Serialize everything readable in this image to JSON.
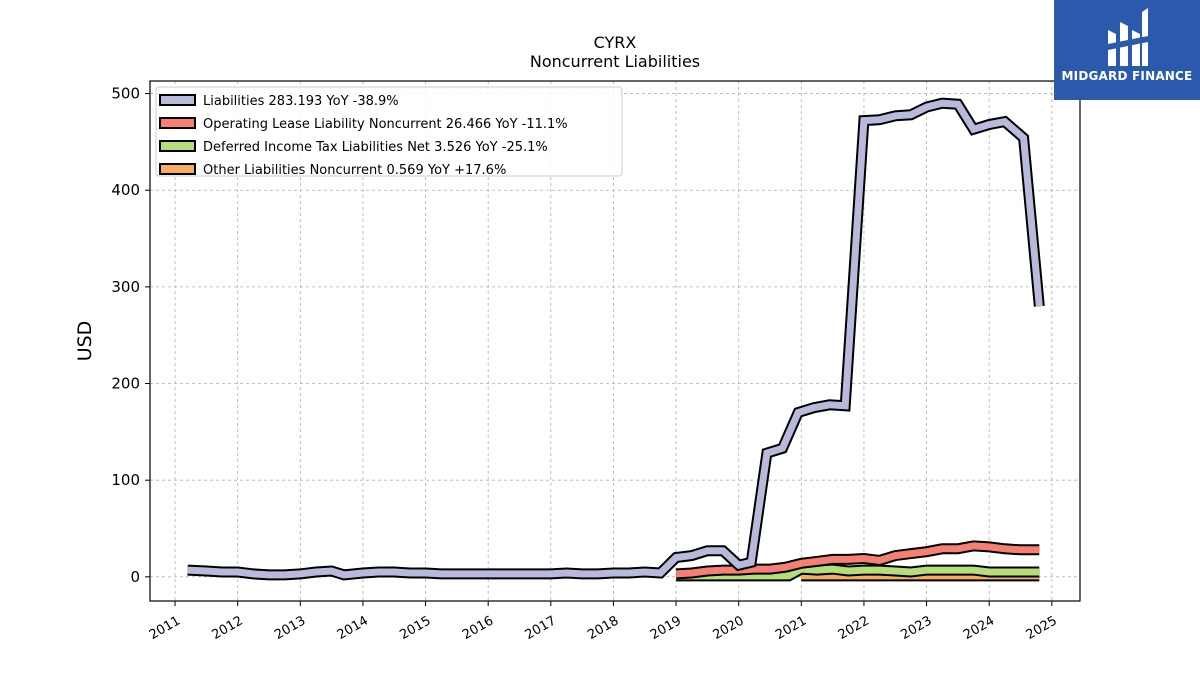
{
  "brand": {
    "name": "MIDGARD FINANCE",
    "color": "#2b5aad"
  },
  "chart_data": {
    "type": "line",
    "title": "CYRX",
    "subtitle": "Noncurrent  Liabilities",
    "ylabel": "USD",
    "xlabel": "",
    "xlim": [
      2010.6,
      2025.45
    ],
    "ylim": [
      -25,
      513
    ],
    "yticks": [
      0,
      100,
      200,
      300,
      400,
      500
    ],
    "xticks": [
      "2011",
      "2012",
      "2013",
      "2014",
      "2015",
      "2016",
      "2017",
      "2018",
      "2019",
      "2020",
      "2021",
      "2022",
      "2023",
      "2024",
      "2025"
    ],
    "grid": true,
    "legend_position": "top-left",
    "series": [
      {
        "name": "Liabilities  283.193 YoY -38.9%",
        "color": "#b9b9dc",
        "x": [
          2011.2,
          2011.5,
          2011.75,
          2012.0,
          2012.25,
          2012.5,
          2012.75,
          2013.0,
          2013.25,
          2013.5,
          2013.7,
          2014.0,
          2014.25,
          2014.5,
          2014.75,
          2015.0,
          2015.25,
          2015.5,
          2015.75,
          2016.0,
          2016.25,
          2016.5,
          2016.75,
          2017.0,
          2017.25,
          2017.5,
          2017.75,
          2018.0,
          2018.25,
          2018.5,
          2018.75,
          2019.0,
          2019.25,
          2019.5,
          2019.75,
          2020.0,
          2020.2,
          2020.45,
          2020.7,
          2020.95,
          2021.2,
          2021.45,
          2021.7,
          2022.0,
          2022.25,
          2022.5,
          2022.75,
          2023.0,
          2023.25,
          2023.5,
          2023.75,
          2024.0,
          2024.25,
          2024.55,
          2024.8
        ],
        "values": [
          7,
          6,
          5,
          5,
          3,
          2,
          2,
          3,
          5,
          6,
          2,
          4,
          5,
          5,
          4,
          4,
          3,
          3,
          3,
          3,
          3,
          3,
          3,
          3,
          4,
          3,
          3,
          4,
          4,
          5,
          4,
          20,
          22,
          27,
          27,
          12,
          15,
          128,
          133,
          170,
          175,
          178,
          177,
          472,
          473,
          477,
          478,
          486,
          490,
          489,
          463,
          468,
          471,
          454,
          280
        ]
      },
      {
        "name": "Operating Lease Liability Noncurrent  26.466 YoY -11.1%",
        "color": "#f47f72",
        "x": [
          2019.0,
          2019.25,
          2019.5,
          2019.75,
          2020.0,
          2020.25,
          2020.5,
          2020.75,
          2021.0,
          2021.25,
          2021.5,
          2021.75,
          2022.0,
          2022.25,
          2022.5,
          2022.75,
          2023.0,
          2023.25,
          2023.5,
          2023.75,
          2024.0,
          2024.25,
          2024.5,
          2024.8
        ],
        "values": [
          3,
          4,
          6,
          7,
          7,
          8,
          8,
          10,
          14,
          16,
          18,
          18,
          19,
          17,
          22,
          24,
          26,
          29,
          29,
          32,
          31,
          29,
          28,
          28
        ]
      },
      {
        "name": "Deferred Income Tax Liabilities Net  3.526 YoY -25.1%",
        "color": "#b5dd7a",
        "x": [
          2019.0,
          2019.5,
          2020.0,
          2020.5,
          2020.8,
          2021.0,
          2021.25,
          2021.5,
          2021.75,
          2022.0,
          2022.25,
          2022.5,
          2022.75,
          2023.0,
          2023.25,
          2023.5,
          2023.75,
          2024.0,
          2024.25,
          2024.5,
          2024.8
        ],
        "values": [
          1,
          1,
          1,
          1,
          1,
          8,
          7,
          8,
          6,
          7,
          7,
          6,
          5,
          7,
          7,
          7,
          7,
          5,
          5,
          5,
          5
        ]
      },
      {
        "name": "Other Liabilities Noncurrent  0.569 YoY +17.6%",
        "color": "#f6ad62",
        "x": [
          2021.0,
          2022.0,
          2023.0,
          2024.0,
          2024.8
        ],
        "values": [
          1,
          1,
          1,
          1,
          1
        ]
      }
    ]
  }
}
